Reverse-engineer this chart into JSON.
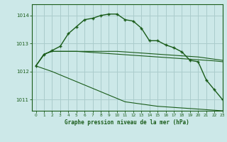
{
  "title": "Graphe pression niveau de la mer (hPa)",
  "background_color": "#cce8e8",
  "grid_color": "#aacccc",
  "line_color": "#1a5c1a",
  "xlim": [
    -0.5,
    23
  ],
  "ylim": [
    1010.6,
    1014.4
  ],
  "yticks": [
    1011,
    1012,
    1013,
    1014
  ],
  "xticks": [
    0,
    1,
    2,
    3,
    4,
    5,
    6,
    7,
    8,
    9,
    10,
    11,
    12,
    13,
    14,
    15,
    16,
    17,
    18,
    19,
    20,
    21,
    22,
    23
  ],
  "series": [
    [
      1012.2,
      1012.6,
      1012.75,
      1012.9,
      1013.35,
      1013.6,
      1013.85,
      1013.9,
      1014.0,
      1014.05,
      1014.05,
      1013.85,
      1013.8,
      1013.55,
      1013.1,
      1013.1,
      1012.95,
      1012.85,
      1012.7,
      1012.4,
      1012.35,
      1011.7,
      1011.35,
      1011.0
    ],
    [
      1012.2,
      1012.62,
      1012.72,
      1012.72,
      1012.72,
      1012.72,
      1012.7,
      1012.68,
      1012.66,
      1012.64,
      1012.62,
      1012.6,
      1012.58,
      1012.56,
      1012.54,
      1012.52,
      1012.5,
      1012.48,
      1012.46,
      1012.44,
      1012.42,
      1012.4,
      1012.38,
      1012.35
    ],
    [
      1012.2,
      1012.62,
      1012.72,
      1012.72,
      1012.72,
      1012.72,
      1012.72,
      1012.72,
      1012.72,
      1012.72,
      1012.72,
      1012.7,
      1012.68,
      1012.66,
      1012.64,
      1012.62,
      1012.6,
      1012.58,
      1012.56,
      1012.54,
      1012.52,
      1012.48,
      1012.44,
      1012.4
    ],
    [
      1012.2,
      1012.1,
      1012.0,
      1011.88,
      1011.76,
      1011.64,
      1011.52,
      1011.4,
      1011.28,
      1011.16,
      1011.04,
      1010.92,
      1010.88,
      1010.84,
      1010.8,
      1010.76,
      1010.74,
      1010.72,
      1010.7,
      1010.68,
      1010.66,
      1010.64,
      1010.62,
      1010.6
    ]
  ]
}
